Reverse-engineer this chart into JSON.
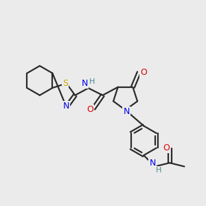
{
  "background_color": "#ebebeb",
  "bond_color": "#2a2a2a",
  "bond_width": 1.6,
  "atom_colors": {
    "N": "#0000ee",
    "O": "#dd0000",
    "S": "#ccaa00",
    "H_label": "#4a8888",
    "C": "#2a2a2a"
  },
  "font_size_atom": 8.5,
  "xlim": [
    0,
    10
  ],
  "ylim": [
    0,
    10
  ]
}
